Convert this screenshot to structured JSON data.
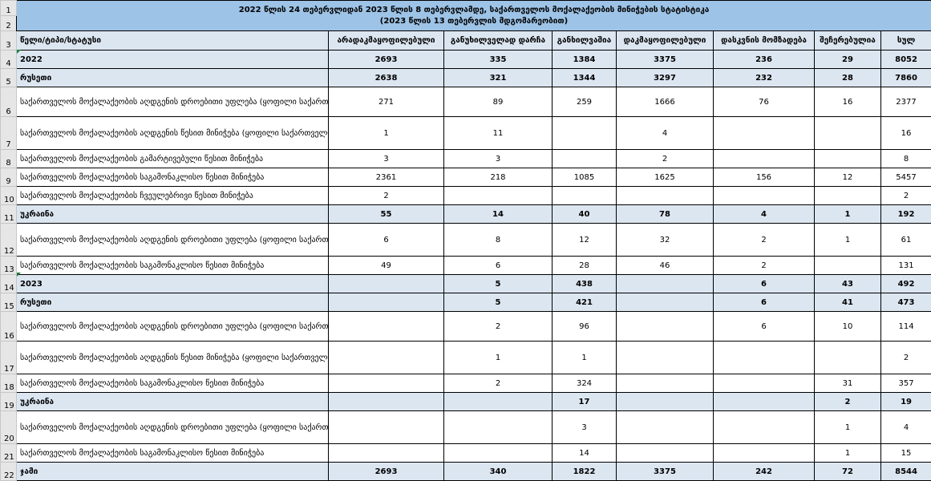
{
  "title": {
    "line1": "2022 წლის 24 თებერვლიდან 2023 წლის 8 თებერვლამდე, საქართველოს მოქალაქეობის მინიჭების სტატისტიკა",
    "line2": "(2023 წლის 13 თებერვლის მდგომარეობით)"
  },
  "header": {
    "category": "წელი/ტიპი/სტატუსი",
    "cols": [
      "არადაკმაყოფილებული",
      "განუხილველად დარჩა",
      "განხილვაშია",
      "დაკმაყოფილებული",
      "დასკვნის მომზადება",
      "შეჩერებულია",
      "სულ"
    ]
  },
  "row_numbers": [
    "1",
    "2",
    "3",
    "4",
    "5",
    "6",
    "7",
    "8",
    "9",
    "10",
    "11",
    "12",
    "13",
    "14",
    "15",
    "16",
    "17",
    "18",
    "19",
    "20",
    "21",
    "22"
  ],
  "rows": [
    {
      "label": "2022",
      "values": [
        "2693",
        "335",
        "1384",
        "3375",
        "236",
        "29",
        "8052"
      ]
    },
    {
      "label": "რუსეთი",
      "values": [
        "2638",
        "321",
        "1344",
        "3297",
        "232",
        "28",
        "7860"
      ]
    },
    {
      "label": "საქართველოს მოქალაქეობის აღდგენის დროებითი უფლება (ყოფილი საქართველოს მოქალაქე)",
      "values": [
        "271",
        "89",
        "259",
        "1666",
        "76",
        "16",
        "2377"
      ]
    },
    {
      "label": "საქართველოს მოქალაქეობის აღდგენის წესით მინიჭება (ყოფილი საქართველოს მოქალაქე)",
      "values": [
        "1",
        "11",
        "",
        "4",
        "",
        "",
        "16"
      ]
    },
    {
      "label": "საქართველოს მოქალაქეობის გამარტივებული წესით მინიჭება",
      "values": [
        "3",
        "3",
        "",
        "2",
        "",
        "",
        "8"
      ]
    },
    {
      "label": "საქართველოს მოქალაქეობის საგამონაკლისო წესით მინიჭება",
      "values": [
        "2361",
        "218",
        "1085",
        "1625",
        "156",
        "12",
        "5457"
      ]
    },
    {
      "label": "საქართველოს მოქალაქეობის ჩვეულებრივი წესით მინიჭება",
      "values": [
        "2",
        "",
        "",
        "",
        "",
        "",
        "2"
      ]
    },
    {
      "label": "უკრაინა",
      "values": [
        "55",
        "14",
        "40",
        "78",
        "4",
        "1",
        "192"
      ]
    },
    {
      "label": "საქართველოს მოქალაქეობის აღდგენის დროებითი უფლება (ყოფილი საქართველოს მოქალაქე)",
      "values": [
        "6",
        "8",
        "12",
        "32",
        "2",
        "1",
        "61"
      ]
    },
    {
      "label": "საქართველოს მოქალაქეობის საგამონაკლისო წესით მინიჭება",
      "values": [
        "49",
        "6",
        "28",
        "46",
        "2",
        "",
        "131"
      ]
    },
    {
      "label": "2023",
      "values": [
        "",
        "5",
        "438",
        "",
        "6",
        "43",
        "492"
      ]
    },
    {
      "label": "რუსეთი",
      "values": [
        "",
        "5",
        "421",
        "",
        "6",
        "41",
        "473"
      ]
    },
    {
      "label": "საქართველოს მოქალაქეობის აღდგენის დროებითი უფლება (ყოფილი საქართველოს მოქალაქე)",
      "values": [
        "",
        "2",
        "96",
        "",
        "6",
        "10",
        "114"
      ]
    },
    {
      "label": "საქართველოს მოქალაქეობის აღდგენის წესით მინიჭება (ყოფილი საქართველოს მოქალაქე)",
      "values": [
        "",
        "1",
        "1",
        "",
        "",
        "",
        "2"
      ]
    },
    {
      "label": "საქართველოს მოქალაქეობის საგამონაკლისო წესით მინიჭება",
      "values": [
        "",
        "2",
        "324",
        "",
        "",
        "31",
        "357"
      ]
    },
    {
      "label": "უკრაინა",
      "values": [
        "",
        "",
        "17",
        "",
        "",
        "2",
        "19"
      ]
    },
    {
      "label": "საქართველოს მოქალაქეობის აღდგენის დროებითი უფლება (ყოფილი საქართველოს მოქალაქე)",
      "values": [
        "",
        "",
        "3",
        "",
        "",
        "1",
        "4"
      ]
    },
    {
      "label": "საქართველოს მოქალაქეობის საგამონაკლისო წესით მინიჭება",
      "values": [
        "",
        "",
        "14",
        "",
        "",
        "1",
        "15"
      ]
    },
    {
      "label": "ჯამი",
      "values": [
        "2693",
        "340",
        "1822",
        "3375",
        "242",
        "72",
        "8544"
      ]
    }
  ]
}
